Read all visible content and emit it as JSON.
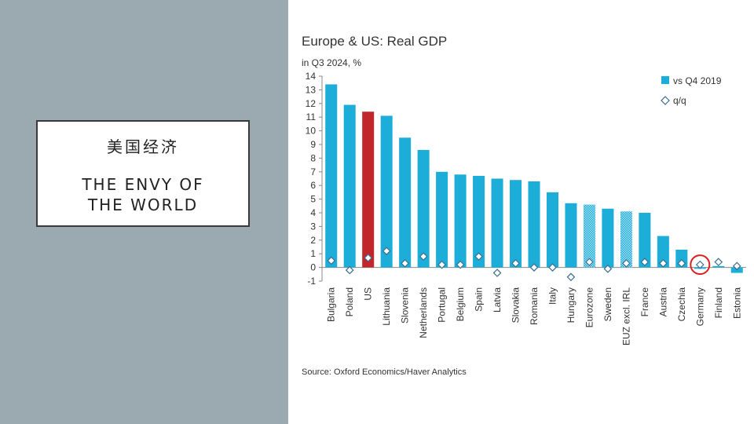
{
  "slide": {
    "title_cn": "美国经济",
    "title_en_line1": "THE ENVY OF",
    "title_en_line2": "THE WORLD"
  },
  "chart_data": {
    "type": "bar",
    "title": "Europe & US: Real GDP",
    "subtitle": "in Q3 2024, %",
    "source": "Source: Oxford Economics/Haver Analytics",
    "categories": [
      "Bulgaria",
      "Poland",
      "US",
      "Lithuania",
      "Slovenia",
      "Netherlands",
      "Portugal",
      "Belgium",
      "Spain",
      "Latvia",
      "Slovakia",
      "Romania",
      "Italy",
      "Hungary",
      "Eurozone",
      "Sweden",
      "EUZ excl. IRL",
      "France",
      "Austria",
      "Czechia",
      "Germany",
      "Finland",
      "Estonia"
    ],
    "series": [
      {
        "name": "vs Q4 2019",
        "type": "bar",
        "values": [
          13.4,
          11.9,
          11.4,
          11.1,
          9.5,
          8.6,
          7.0,
          6.8,
          6.7,
          6.5,
          6.4,
          6.3,
          5.5,
          4.7,
          4.6,
          4.3,
          4.1,
          4.0,
          2.3,
          1.3,
          -0.1,
          0.1,
          -0.4
        ]
      },
      {
        "name": "q/q",
        "type": "scatter",
        "values": [
          0.5,
          -0.2,
          0.7,
          1.2,
          0.3,
          0.8,
          0.2,
          0.2,
          0.8,
          -0.4,
          0.3,
          0.0,
          0.0,
          -0.7,
          0.4,
          -0.1,
          0.3,
          0.4,
          0.3,
          0.3,
          0.2,
          0.4,
          0.1
        ]
      }
    ],
    "hatched_categories": [
      "Eurozone",
      "EUZ excl. IRL"
    ],
    "highlight_category": "US",
    "circled_category": "Germany",
    "ylim": [
      -1,
      14
    ],
    "yticks": [
      -1,
      0,
      1,
      2,
      3,
      4,
      5,
      6,
      7,
      8,
      9,
      10,
      11,
      12,
      13,
      14
    ],
    "legend_position": "top-right",
    "grid": false,
    "colors": {
      "bar": "#1cadd9",
      "highlight": "#c0262c",
      "hatch_light": "#a9def2",
      "marker_stroke": "#3c6e8f",
      "circle": "#e02020"
    }
  }
}
